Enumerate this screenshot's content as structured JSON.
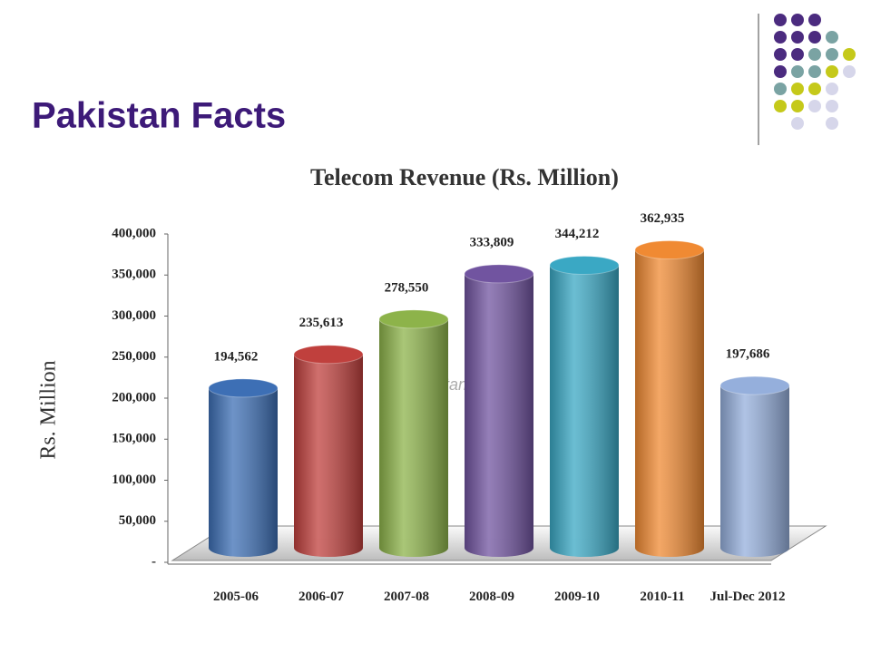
{
  "slide_title": "Pakistan Facts",
  "chart_data": {
    "type": "bar",
    "title": "Telecom Revenue (Rs. Million)",
    "y_label": "Rs. Million",
    "watermark": "ProPakistani.PK",
    "categories": [
      "2005-06",
      "2006-07",
      "2007-08",
      "2008-09",
      "2009-10",
      "2010-11",
      "Jul-Dec 2012"
    ],
    "values": [
      194562,
      235613,
      278550,
      333809,
      344212,
      362935,
      197686
    ],
    "value_labels": [
      "194,562",
      "235,613",
      "278,550",
      "333,809",
      "344,212",
      "362,935",
      "197,686"
    ],
    "colors": [
      "#3d6fb5",
      "#c0403d",
      "#8db34a",
      "#7154a0",
      "#3aa8c4",
      "#f08a33",
      "#95afdc"
    ],
    "ylim": [
      0,
      400000
    ],
    "yticks": [
      {
        "value": 0,
        "label": "-"
      },
      {
        "value": 50000,
        "label": "50,000"
      },
      {
        "value": 100000,
        "label": "100,000"
      },
      {
        "value": 150000,
        "label": "150,000"
      },
      {
        "value": 200000,
        "label": "200,000"
      },
      {
        "value": 250000,
        "label": "250,000"
      },
      {
        "value": 300000,
        "label": "300,000"
      },
      {
        "value": 350000,
        "label": "350,000"
      },
      {
        "value": 400000,
        "label": "400,000"
      }
    ]
  }
}
